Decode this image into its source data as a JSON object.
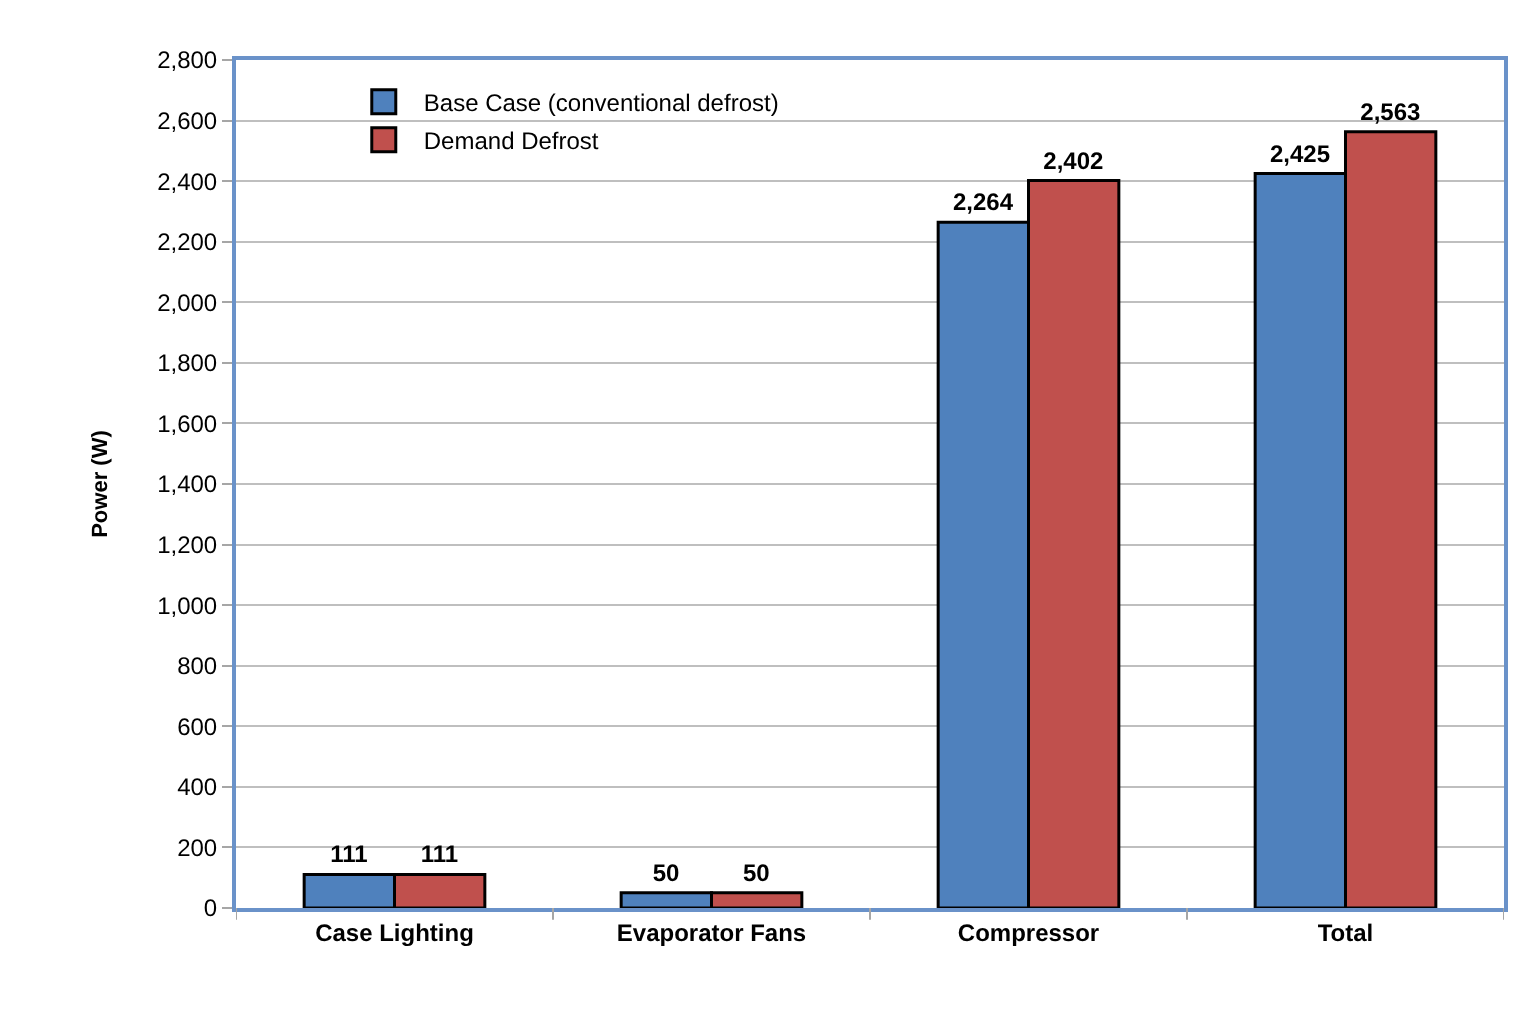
{
  "chart_data": {
    "type": "bar",
    "ylabel": "Power (W)",
    "categories": [
      "Case Lighting",
      "Evaporator Fans",
      "Compressor",
      "Total"
    ],
    "series": [
      {
        "name": "Base Case (conventional defrost)",
        "color": "#4f81bd",
        "values": [
          111,
          50,
          2264,
          2425
        ],
        "value_labels": [
          "111",
          "50",
          "2,264",
          "2,425"
        ]
      },
      {
        "name": "Demand Defrost",
        "color": "#c0504d",
        "values": [
          111,
          50,
          2402,
          2563
        ],
        "value_labels": [
          "111",
          "50",
          "2,402",
          "2,563"
        ]
      }
    ],
    "ylim": [
      0,
      2800
    ],
    "yticks": [
      0,
      200,
      400,
      600,
      800,
      {
        "value": 1000,
        "label": "1,000"
      },
      {
        "value": 1200,
        "label": "1,200"
      },
      {
        "value": 1400,
        "label": "1,400"
      },
      {
        "value": 1600,
        "label": "1,600"
      },
      {
        "value": 1800,
        "label": "1,800"
      },
      {
        "value": 2000,
        "label": "2,000"
      },
      {
        "value": 2200,
        "label": "2,200"
      },
      {
        "value": 2400,
        "label": "2,400"
      },
      {
        "value": 2600,
        "label": "2,600"
      },
      {
        "value": 2800,
        "label": "2,800"
      }
    ],
    "grid": "y",
    "legend": "top left"
  }
}
